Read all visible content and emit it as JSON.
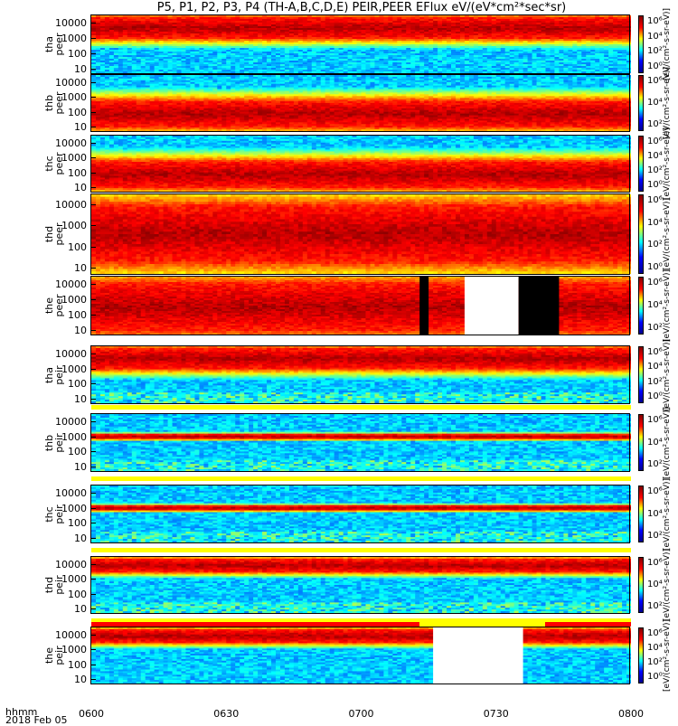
{
  "title": "P5, P1, P2, P3, P4 (TH-A,B,C,D,E) PEIR,PEER EFlux eV/(eV*cm²*sec*sr)",
  "chart_data": {
    "type": "heatmap",
    "title": "P5, P1, P2, P3, P4 (TH-A,B,C,D,E) PEIR,PEER EFlux eV/(eV*cm²*sec*sr)",
    "x_ticks": [
      "0600",
      "0630",
      "0700",
      "0730",
      "0800"
    ],
    "x_range": [
      "06:00",
      "08:00"
    ],
    "x_label_line1": "hhmm",
    "x_label_line2": "2018 Feb 05",
    "colorbar_ticks": [
      "10⁰",
      "10²",
      "10⁴",
      "10⁶"
    ],
    "colorbar_unit": "[eV/(cm²-s-sr-eV)]",
    "colorbar_scale": "log",
    "y_scale": "log",
    "panels": [
      {
        "label_top": "tha",
        "label_bottom": "peer",
        "yticks": [
          "10000",
          "1000",
          "100",
          "10"
        ],
        "ylim": [
          5,
          30000
        ],
        "cbar_ticks": [
          "10⁶",
          "10⁴",
          "10²",
          "10⁰"
        ],
        "hot_band": [
          1000,
          20000
        ],
        "noise_low": false,
        "gaps": []
      },
      {
        "label_top": "thb",
        "label_bottom": "peer",
        "yticks": [
          "10000",
          "1000",
          "100",
          "10"
        ],
        "ylim": [
          5,
          30000
        ],
        "cbar_ticks": [
          "10⁶",
          "10⁴",
          "10²"
        ],
        "hot_band": [
          10,
          500
        ],
        "noise_low": false,
        "gaps": []
      },
      {
        "label_top": "thc",
        "label_bottom": "peer",
        "yticks": [
          "10000",
          "1000",
          "100",
          "10"
        ],
        "ylim": [
          5,
          30000
        ],
        "cbar_ticks": [
          "10⁶",
          "10⁴",
          "10²",
          "10⁰"
        ],
        "hot_band": [
          10,
          500
        ],
        "noise_low": false,
        "gaps": []
      },
      {
        "label_top": "thd",
        "label_bottom": "peer",
        "yticks": [
          "10000",
          "1000",
          "100",
          "10"
        ],
        "ylim": [
          5,
          30000
        ],
        "cbar_ticks": [
          "10⁶",
          "10⁴",
          "10²",
          "10⁰"
        ],
        "hot_band": [
          20,
          8000
        ],
        "noise_low": false,
        "gaps": []
      },
      {
        "label_top": "the",
        "label_bottom": "peer",
        "yticks": [
          "10000",
          "1000",
          "100",
          "10"
        ],
        "ylim": [
          5,
          30000
        ],
        "cbar_ticks": [
          "10⁶",
          "10⁴",
          "10²"
        ],
        "hot_band": [
          10,
          10000
        ],
        "noise_low": false,
        "gaps": [
          {
            "from": "07:13",
            "to": "07:15",
            "fill": "black"
          },
          {
            "from": "07:23",
            "to": "07:35",
            "fill": "white"
          },
          {
            "from": "07:35",
            "to": "07:44",
            "fill": "black"
          }
        ]
      },
      {
        "label_top": "tha",
        "label_bottom": "peir",
        "yticks": [
          "10000",
          "1000",
          "100",
          "10"
        ],
        "ylim": [
          5,
          30000
        ],
        "cbar_ticks": [
          "10⁶",
          "10⁴",
          "10²",
          "10⁰"
        ],
        "hot_band": [
          1000,
          20000
        ],
        "noise_low": true,
        "gaps": []
      },
      {
        "label_top": "thb",
        "label_bottom": "peir",
        "yticks": [
          "10000",
          "1000",
          "100",
          "10"
        ],
        "ylim": [
          5,
          30000
        ],
        "cbar_ticks": [
          "10⁶",
          "10⁴",
          "10²"
        ],
        "hot_band": [
          800,
          1100
        ],
        "noise_low": true,
        "gaps": []
      },
      {
        "label_top": "thc",
        "label_bottom": "peir",
        "yticks": [
          "10000",
          "1000",
          "100",
          "10"
        ],
        "ylim": [
          5,
          30000
        ],
        "cbar_ticks": [
          "10⁶",
          "10⁴",
          "10²"
        ],
        "hot_band": [
          800,
          1100
        ],
        "noise_low": true,
        "gaps": []
      },
      {
        "label_top": "thd",
        "label_bottom": "peir",
        "yticks": [
          "10000",
          "1000",
          "100",
          "10"
        ],
        "ylim": [
          5,
          30000
        ],
        "cbar_ticks": [
          "10⁶",
          "10⁴",
          "10²"
        ],
        "hot_band": [
          3000,
          20000
        ],
        "noise_low": true,
        "gaps": []
      },
      {
        "label_top": "the",
        "label_bottom": "peir",
        "yticks": [
          "10000",
          "1000",
          "100",
          "10"
        ],
        "ylim": [
          5,
          30000
        ],
        "cbar_ticks": [
          "10⁶",
          "10⁴",
          "10²",
          "10⁰"
        ],
        "hot_band": [
          3000,
          20000
        ],
        "noise_low": false,
        "gaps": [
          {
            "from": "07:16",
            "to": "07:36",
            "fill": "white"
          }
        ]
      }
    ],
    "quality_strips": [
      {
        "after_panel": 5,
        "segments": [
          {
            "from": "06:00",
            "to": "08:00",
            "color": "#ffff00"
          }
        ]
      },
      {
        "after_panel": 6,
        "segments": [
          {
            "from": "06:00",
            "to": "08:00",
            "color": "#ffff00"
          }
        ]
      },
      {
        "after_panel": 7,
        "segments": [
          {
            "from": "06:00",
            "to": "08:00",
            "color": "#ffff00"
          }
        ]
      },
      {
        "after_panel": 8,
        "segments": [
          {
            "from": "06:00",
            "to": "08:00",
            "color": "#ffff00"
          }
        ]
      },
      {
        "after_panel": 9,
        "segments": [
          {
            "from": "06:00",
            "to": "07:13",
            "color": "#ff0000"
          },
          {
            "from": "07:13",
            "to": "07:41",
            "color": "#ffff00"
          },
          {
            "from": "07:41",
            "to": "08:00",
            "color": "#ff0000"
          }
        ]
      }
    ]
  }
}
